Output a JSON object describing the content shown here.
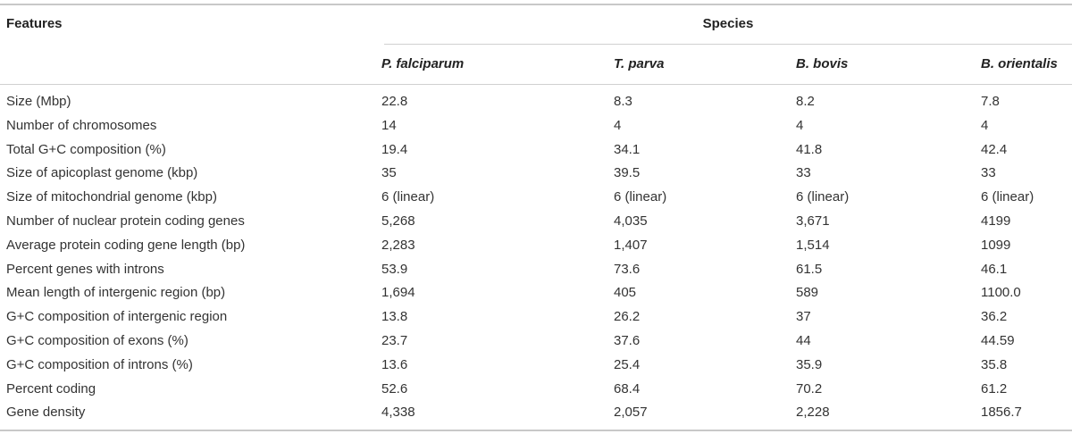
{
  "header": {
    "features": "Features",
    "species": "Species",
    "species_names": [
      "P. falciparum",
      "T. parva",
      "B. bovis",
      "B. orientalis"
    ]
  },
  "rows": [
    {
      "feature": "Size (Mbp)",
      "values": [
        "22.8",
        "8.3",
        "8.2",
        "7.8"
      ]
    },
    {
      "feature": "Number of chromosomes",
      "values": [
        "14",
        "4",
        "4",
        "4"
      ]
    },
    {
      "feature": "Total G+C composition (%)",
      "values": [
        "19.4",
        "34.1",
        "41.8",
        "42.4"
      ]
    },
    {
      "feature": "Size of apicoplast genome (kbp)",
      "values": [
        "35",
        "39.5",
        "33",
        "33"
      ]
    },
    {
      "feature": "Size of mitochondrial genome (kbp)",
      "values": [
        "6 (linear)",
        "6 (linear)",
        "6 (linear)",
        "6 (linear)"
      ]
    },
    {
      "feature": "Number of nuclear protein coding genes",
      "values": [
        "5,268",
        "4,035",
        "3,671",
        "4199"
      ]
    },
    {
      "feature": "Average protein coding gene length (bp)",
      "values": [
        "2,283",
        "1,407",
        "1,514",
        "1099"
      ]
    },
    {
      "feature": "Percent genes with introns",
      "values": [
        "53.9",
        "73.6",
        "61.5",
        "46.1"
      ]
    },
    {
      "feature": "Mean length of intergenic region (bp)",
      "values": [
        "1,694",
        "405",
        "589",
        "1100.0"
      ]
    },
    {
      "feature": "G+C composition of intergenic region",
      "values": [
        "13.8",
        "26.2",
        "37",
        "36.2"
      ]
    },
    {
      "feature": "G+C composition of exons (%)",
      "values": [
        "23.7",
        "37.6",
        "44",
        "44.59"
      ]
    },
    {
      "feature": "G+C composition of introns (%)",
      "values": [
        "13.6",
        "25.4",
        "35.9",
        "35.8"
      ]
    },
    {
      "feature": "Percent coding",
      "values": [
        "52.6",
        "68.4",
        "70.2",
        "61.2"
      ]
    },
    {
      "feature": "Gene density",
      "values": [
        "4,338",
        "2,057",
        "2,228",
        "1856.7"
      ]
    }
  ]
}
